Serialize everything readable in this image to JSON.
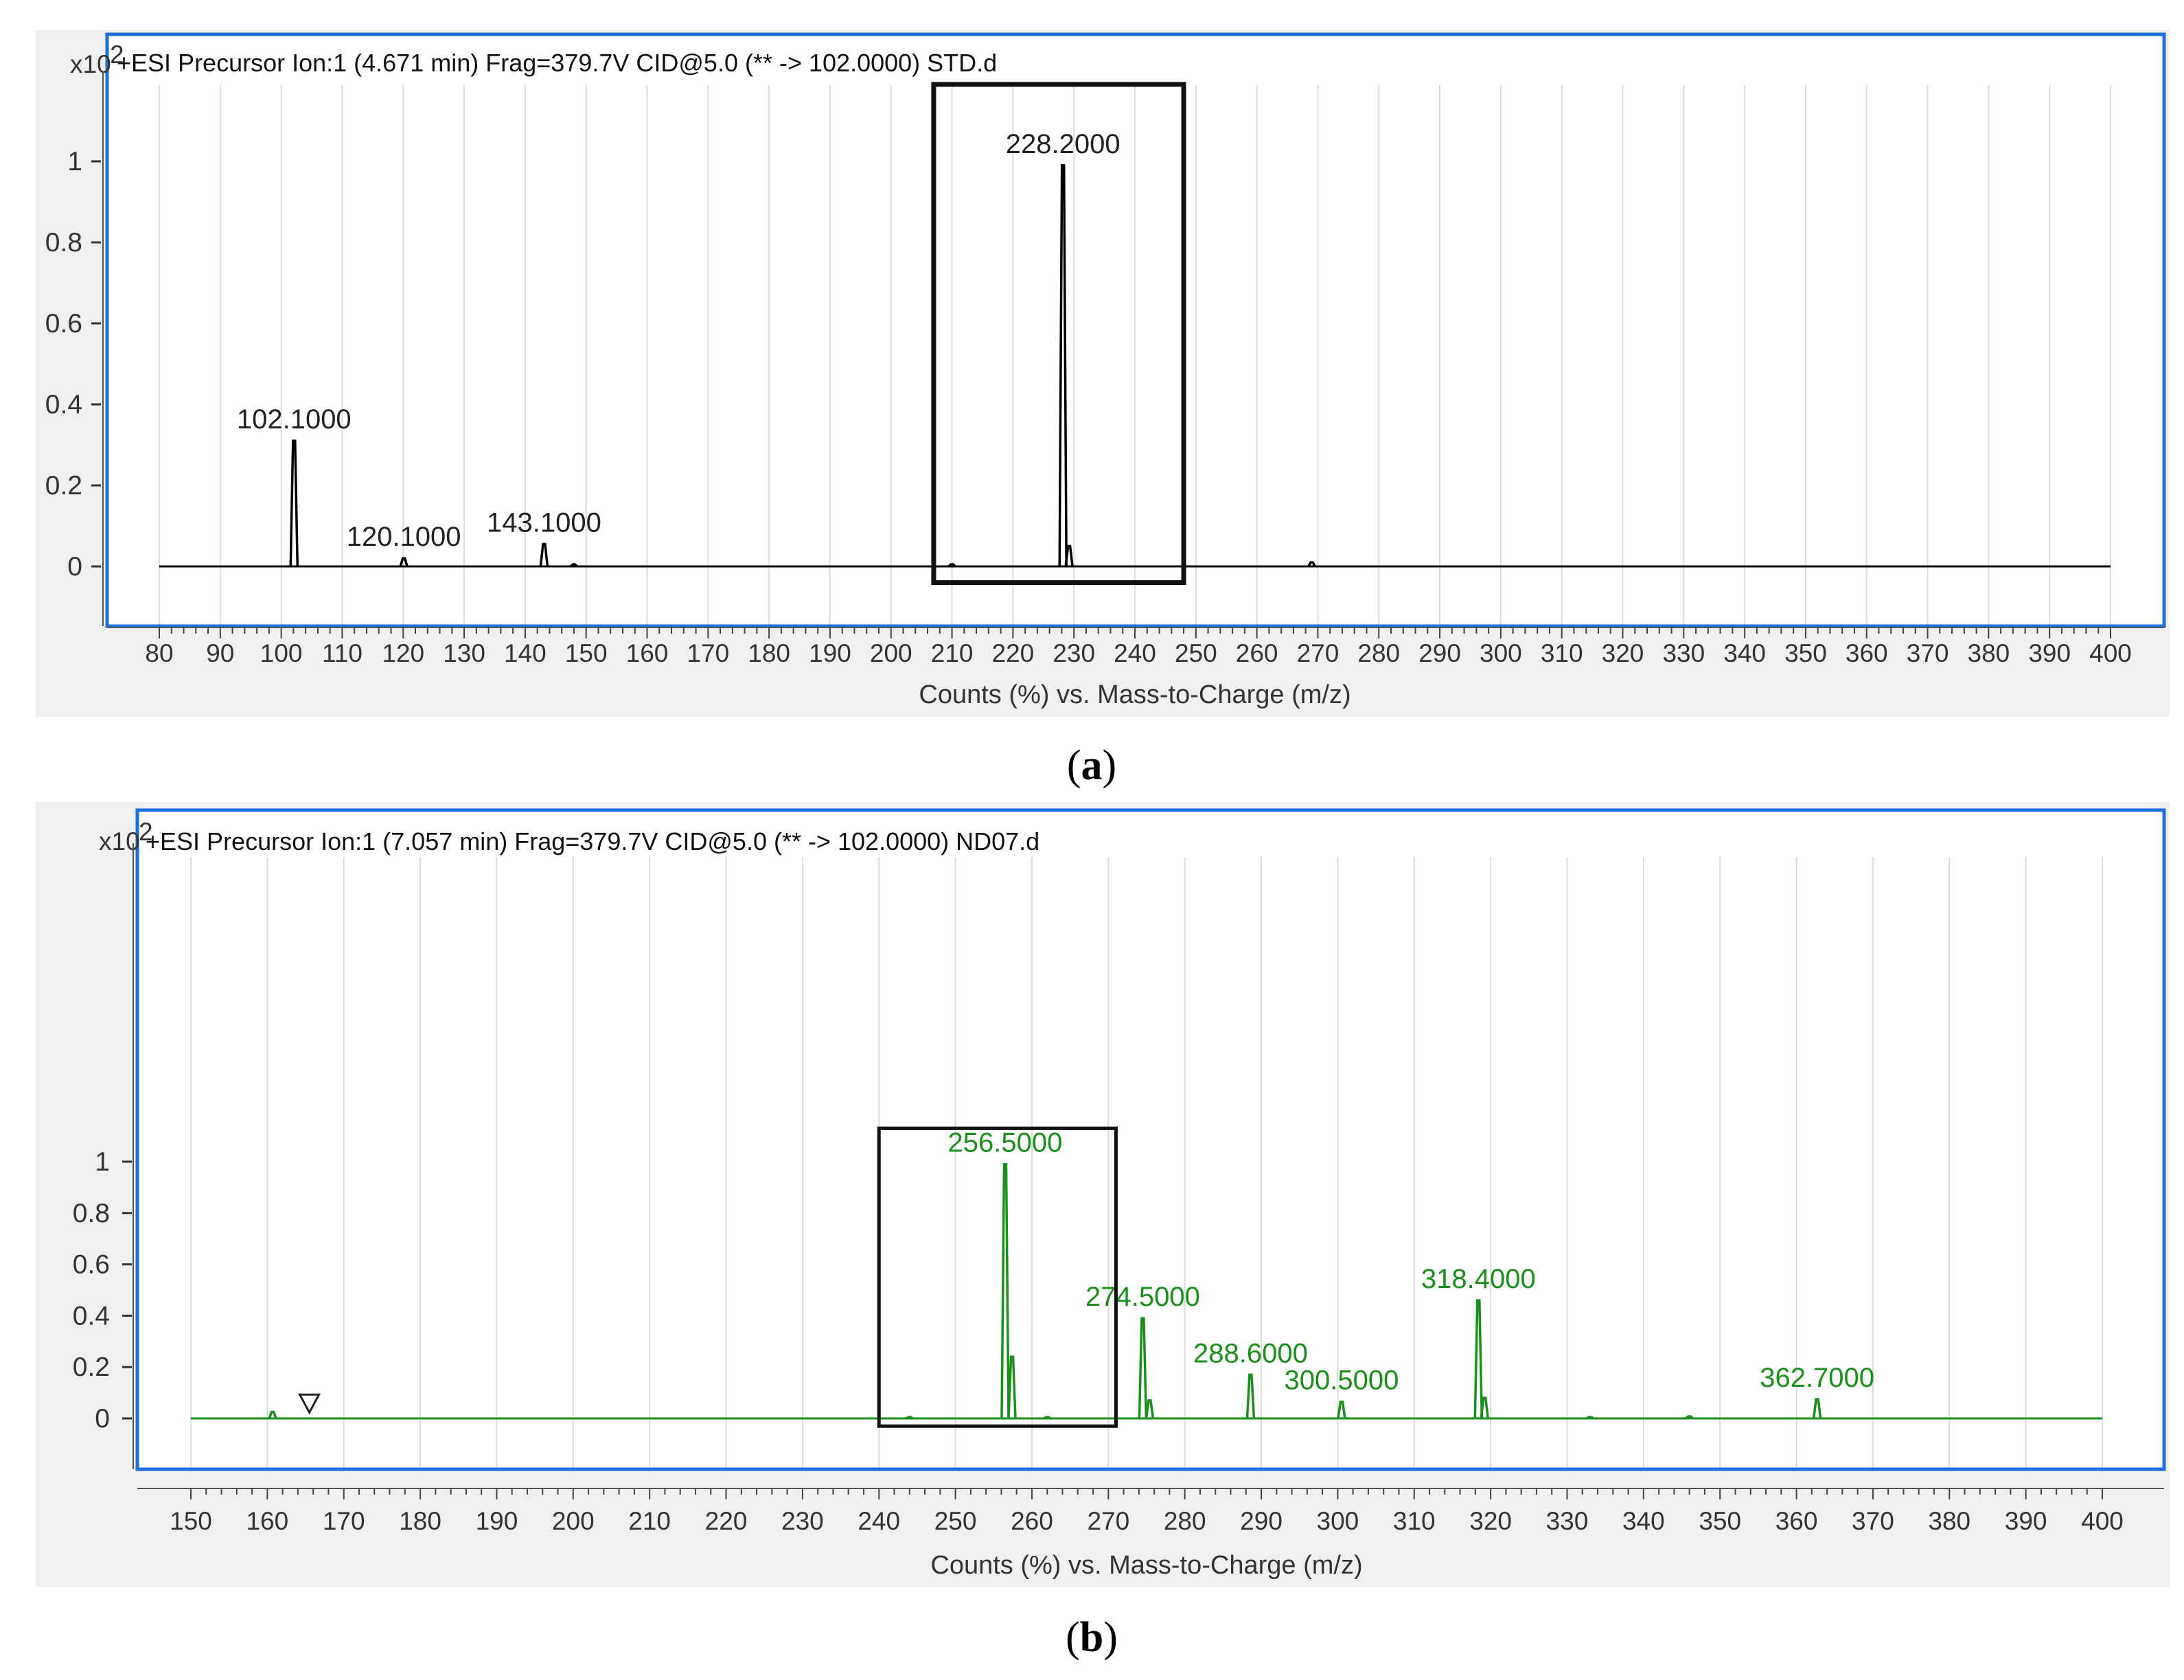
{
  "chart_data": [
    {
      "id": "a",
      "type": "line",
      "title": "+ESI Precursor Ion:1 (4.671 min) Frag=379.7V CID@5.0 (** -> 102.0000) STD.d",
      "xlabel": "Counts (%) vs. Mass-to-Charge (m/z)",
      "ylabel": "",
      "y_scale_label": "x10",
      "y_scale_exponent": "2",
      "xlim": [
        80,
        400
      ],
      "x_ticks": [
        80,
        90,
        100,
        110,
        120,
        130,
        140,
        150,
        160,
        170,
        180,
        190,
        200,
        210,
        220,
        230,
        240,
        250,
        260,
        270,
        280,
        290,
        300,
        310,
        320,
        330,
        340,
        350,
        360,
        370,
        380,
        390,
        400
      ],
      "ylim": [
        -0.05,
        1.25
      ],
      "y_ticks": [
        0,
        0.2,
        0.4,
        0.6,
        0.8,
        1
      ],
      "y_tick_labels": [
        "0",
        "0.2",
        "0.4",
        "0.6",
        "0.8",
        "1"
      ],
      "grid": true,
      "line_color": "#000000",
      "frame_color": "#1e6fd9",
      "peaks": [
        {
          "mz": 102.1,
          "intensity": 0.31,
          "label": "102.1000"
        },
        {
          "mz": 120.1,
          "intensity": 0.02,
          "label": "120.1000"
        },
        {
          "mz": 143.1,
          "intensity": 0.055,
          "label": "143.1000"
        },
        {
          "mz": 148.0,
          "intensity": 0.005,
          "label": ""
        },
        {
          "mz": 210.0,
          "intensity": 0.005,
          "label": ""
        },
        {
          "mz": 228.2,
          "intensity": 0.99,
          "label": "228.2000"
        },
        {
          "mz": 229.2,
          "intensity": 0.05,
          "label": ""
        },
        {
          "mz": 269.0,
          "intensity": 0.01,
          "label": ""
        }
      ],
      "highlight_box": {
        "x_from": 207,
        "x_to": 248,
        "y_from": -0.04,
        "y_to": 1.19
      },
      "caption": "a"
    },
    {
      "id": "b",
      "type": "line",
      "title": "+ESI Precursor Ion:1 (7.057 min) Frag=379.7V CID@5.0 (** -> 102.0000) ND07.d",
      "xlabel": "Counts (%) vs. Mass-to-Charge (m/z)",
      "ylabel": "",
      "y_scale_label": "x10",
      "y_scale_exponent": "2",
      "xlim": [
        150,
        400
      ],
      "x_ticks": [
        150,
        160,
        170,
        180,
        190,
        200,
        210,
        220,
        230,
        240,
        250,
        260,
        270,
        280,
        290,
        300,
        310,
        320,
        330,
        340,
        350,
        360,
        370,
        380,
        390,
        400
      ],
      "ylim": [
        -0.05,
        1.25
      ],
      "y_ticks": [
        0,
        0.2,
        0.4,
        0.6,
        0.8,
        1
      ],
      "y_tick_labels": [
        "0",
        "0.2",
        "0.4",
        "0.6",
        "0.8",
        "1"
      ],
      "grid": true,
      "line_color": "#1a8f1a",
      "frame_color": "#1e6fd9",
      "peaks": [
        {
          "mz": 160.7,
          "intensity": 0.025,
          "label": ""
        },
        {
          "mz": 244.0,
          "intensity": 0.005,
          "label": ""
        },
        {
          "mz": 256.5,
          "intensity": 0.99,
          "label": "256.5000"
        },
        {
          "mz": 257.4,
          "intensity": 0.24,
          "label": ""
        },
        {
          "mz": 262.0,
          "intensity": 0.005,
          "label": ""
        },
        {
          "mz": 274.5,
          "intensity": 0.39,
          "label": "274.5000"
        },
        {
          "mz": 275.4,
          "intensity": 0.07,
          "label": ""
        },
        {
          "mz": 288.6,
          "intensity": 0.17,
          "label": "288.6000"
        },
        {
          "mz": 300.5,
          "intensity": 0.065,
          "label": "300.5000"
        },
        {
          "mz": 318.4,
          "intensity": 0.46,
          "label": "318.4000"
        },
        {
          "mz": 319.2,
          "intensity": 0.08,
          "label": ""
        },
        {
          "mz": 333.0,
          "intensity": 0.005,
          "label": ""
        },
        {
          "mz": 346.0,
          "intensity": 0.008,
          "label": ""
        },
        {
          "mz": 362.7,
          "intensity": 0.075,
          "label": "362.7000"
        }
      ],
      "marker": {
        "mz": 165.5,
        "intensity": 0.05,
        "symbol": "open-triangle-down"
      },
      "highlight_box": {
        "x_from": 240,
        "x_to": 271,
        "y_from": -0.03,
        "y_to": 1.13
      },
      "caption": "b"
    }
  ]
}
